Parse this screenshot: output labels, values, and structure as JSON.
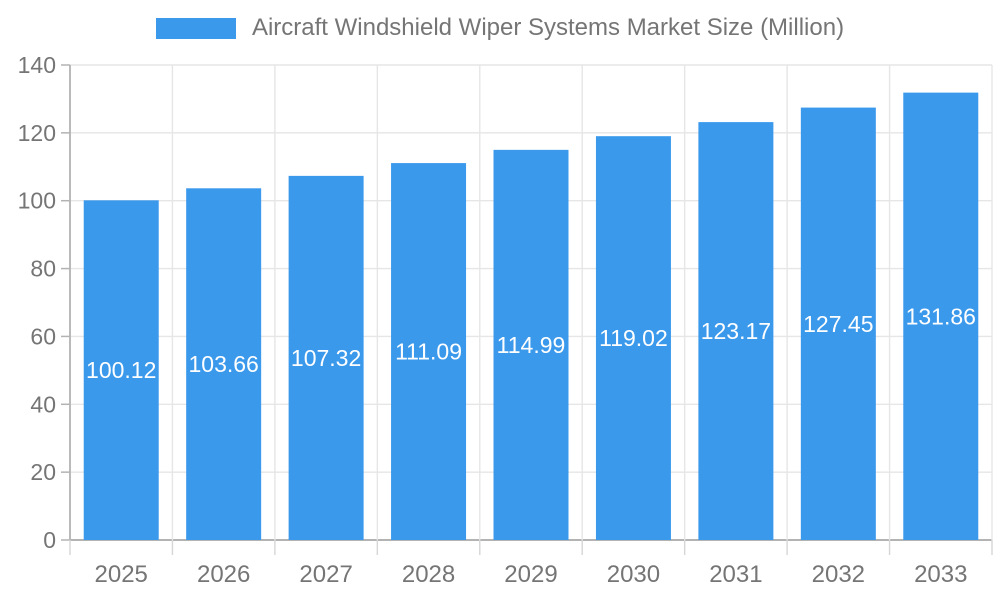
{
  "legend": {
    "label": "Aircraft Windshield Wiper Systems Market Size (Million)",
    "swatch_color": "#3B99EC"
  },
  "chart_data": {
    "type": "bar",
    "title": "Aircraft Windshield Wiper Systems Market Size (Million)",
    "categories": [
      "2025",
      "2026",
      "2027",
      "2028",
      "2029",
      "2030",
      "2031",
      "2032",
      "2033"
    ],
    "values": [
      100.12,
      103.66,
      107.32,
      111.09,
      114.99,
      119.02,
      123.17,
      127.45,
      131.86
    ],
    "value_labels": [
      "100.12",
      "103.66",
      "107.32",
      "111.09",
      "114.99",
      "119.02",
      "123.17",
      "127.45",
      "131.86"
    ],
    "xlabel": "",
    "ylabel": "",
    "ylim": [
      0,
      140
    ],
    "yticks": [
      0,
      20,
      40,
      60,
      80,
      100,
      120,
      140
    ],
    "grid": true,
    "legend_position": "top",
    "bar_color": "#3B99EC",
    "bar_label_color": "#ffffff",
    "axis_text_color": "#757575",
    "grid_color": "#e6e6e6",
    "axis_line_color": "#b3b3b3",
    "minor_tick_color": "#d6d6d6"
  }
}
